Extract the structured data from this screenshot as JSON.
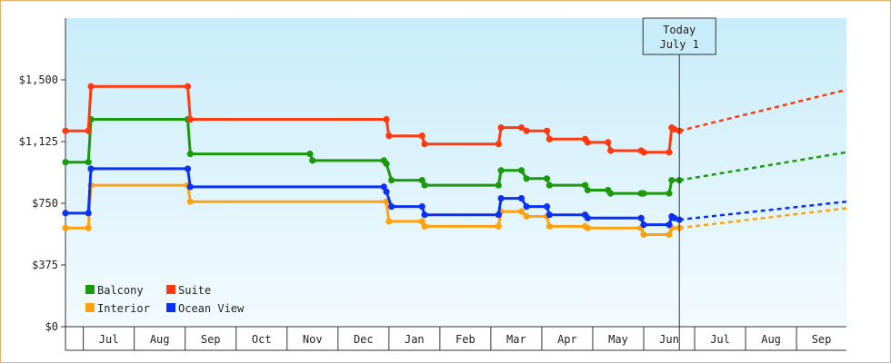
{
  "chart_data": {
    "type": "line",
    "title": "",
    "xlabel": "",
    "ylabel": "",
    "ylim": [
      0,
      1875
    ],
    "xlim": [
      0,
      15.33
    ],
    "y_ticks": [
      {
        "value": 0,
        "label": "$0"
      },
      {
        "value": 375,
        "label": "$375"
      },
      {
        "value": 750,
        "label": "$750"
      },
      {
        "value": 1125,
        "label": "$1,125"
      },
      {
        "value": 1500,
        "label": "$1,500"
      }
    ],
    "x_months": [
      "Jul",
      "Aug",
      "Sep",
      "Oct",
      "Nov",
      "Dec",
      "Jan",
      "Feb",
      "Mar",
      "Apr",
      "May",
      "Jun",
      "Jul",
      "Aug",
      "Sep"
    ],
    "today": {
      "x": 12.05,
      "line1": "Today",
      "line2": "July 1"
    },
    "legend": {
      "position": "bottom-left"
    },
    "colors": {
      "plot_top": "#c9ecfa",
      "plot_bottom": "#f3fbfe",
      "frame": "#e8b06a"
    },
    "series": [
      {
        "name": "Balcony",
        "color": "#1a9a0c",
        "points": [
          [
            0,
            1000
          ],
          [
            0.45,
            1000
          ],
          [
            0.5,
            1260
          ],
          [
            2.4,
            1260
          ],
          [
            2.45,
            1050
          ],
          [
            4.8,
            1050
          ],
          [
            4.85,
            1010
          ],
          [
            6.25,
            1010
          ],
          [
            6.3,
            990
          ],
          [
            6.4,
            890
          ],
          [
            7.0,
            890
          ],
          [
            7.05,
            860
          ],
          [
            8.5,
            860
          ],
          [
            8.55,
            950
          ],
          [
            8.95,
            950
          ],
          [
            9.05,
            900
          ],
          [
            9.45,
            900
          ],
          [
            9.5,
            860
          ],
          [
            10.2,
            860
          ],
          [
            10.25,
            830
          ],
          [
            10.65,
            830
          ],
          [
            10.7,
            810
          ],
          [
            11.3,
            810
          ],
          [
            11.35,
            810
          ],
          [
            11.85,
            810
          ],
          [
            11.9,
            890
          ],
          [
            12.05,
            890
          ]
        ],
        "forecast": [
          [
            12.05,
            890
          ],
          [
            15.33,
            1060
          ]
        ]
      },
      {
        "name": "Suite",
        "color": "#ff3a0f",
        "points": [
          [
            0,
            1190
          ],
          [
            0.45,
            1190
          ],
          [
            0.5,
            1460
          ],
          [
            2.4,
            1460
          ],
          [
            2.45,
            1260
          ],
          [
            6.3,
            1260
          ],
          [
            6.35,
            1160
          ],
          [
            7.0,
            1160
          ],
          [
            7.05,
            1110
          ],
          [
            8.5,
            1110
          ],
          [
            8.55,
            1210
          ],
          [
            8.95,
            1210
          ],
          [
            9.05,
            1190
          ],
          [
            9.45,
            1190
          ],
          [
            9.5,
            1140
          ],
          [
            10.2,
            1140
          ],
          [
            10.25,
            1120
          ],
          [
            10.65,
            1120
          ],
          [
            10.7,
            1070
          ],
          [
            11.3,
            1070
          ],
          [
            11.35,
            1060
          ],
          [
            11.85,
            1060
          ],
          [
            11.9,
            1210
          ],
          [
            11.95,
            1200
          ],
          [
            12.05,
            1190
          ]
        ],
        "forecast": [
          [
            12.05,
            1190
          ],
          [
            15.33,
            1440
          ]
        ]
      },
      {
        "name": "Interior",
        "color": "#ffa210",
        "points": [
          [
            0,
            600
          ],
          [
            0.45,
            600
          ],
          [
            0.5,
            860
          ],
          [
            2.4,
            860
          ],
          [
            2.45,
            760
          ],
          [
            6.3,
            760
          ],
          [
            6.35,
            640
          ],
          [
            7.0,
            640
          ],
          [
            7.05,
            610
          ],
          [
            8.5,
            610
          ],
          [
            8.55,
            700
          ],
          [
            8.95,
            700
          ],
          [
            9.05,
            670
          ],
          [
            9.45,
            670
          ],
          [
            9.5,
            610
          ],
          [
            10.2,
            610
          ],
          [
            10.25,
            600
          ],
          [
            11.3,
            600
          ],
          [
            11.35,
            560
          ],
          [
            11.85,
            560
          ],
          [
            11.9,
            600
          ],
          [
            12.05,
            600
          ]
        ],
        "forecast": [
          [
            12.05,
            600
          ],
          [
            15.33,
            720
          ]
        ]
      },
      {
        "name": "Ocean View",
        "color": "#0a32f0",
        "points": [
          [
            0,
            690
          ],
          [
            0.45,
            690
          ],
          [
            0.5,
            960
          ],
          [
            2.4,
            960
          ],
          [
            2.45,
            850
          ],
          [
            6.25,
            850
          ],
          [
            6.3,
            820
          ],
          [
            6.4,
            730
          ],
          [
            7.0,
            730
          ],
          [
            7.05,
            680
          ],
          [
            8.5,
            680
          ],
          [
            8.55,
            780
          ],
          [
            8.95,
            780
          ],
          [
            9.05,
            730
          ],
          [
            9.45,
            730
          ],
          [
            9.5,
            680
          ],
          [
            10.2,
            680
          ],
          [
            10.25,
            660
          ],
          [
            11.3,
            660
          ],
          [
            11.35,
            620
          ],
          [
            11.85,
            620
          ],
          [
            11.9,
            670
          ],
          [
            11.95,
            660
          ],
          [
            12.05,
            650
          ]
        ],
        "forecast": [
          [
            12.05,
            650
          ],
          [
            15.33,
            760
          ]
        ]
      }
    ]
  }
}
